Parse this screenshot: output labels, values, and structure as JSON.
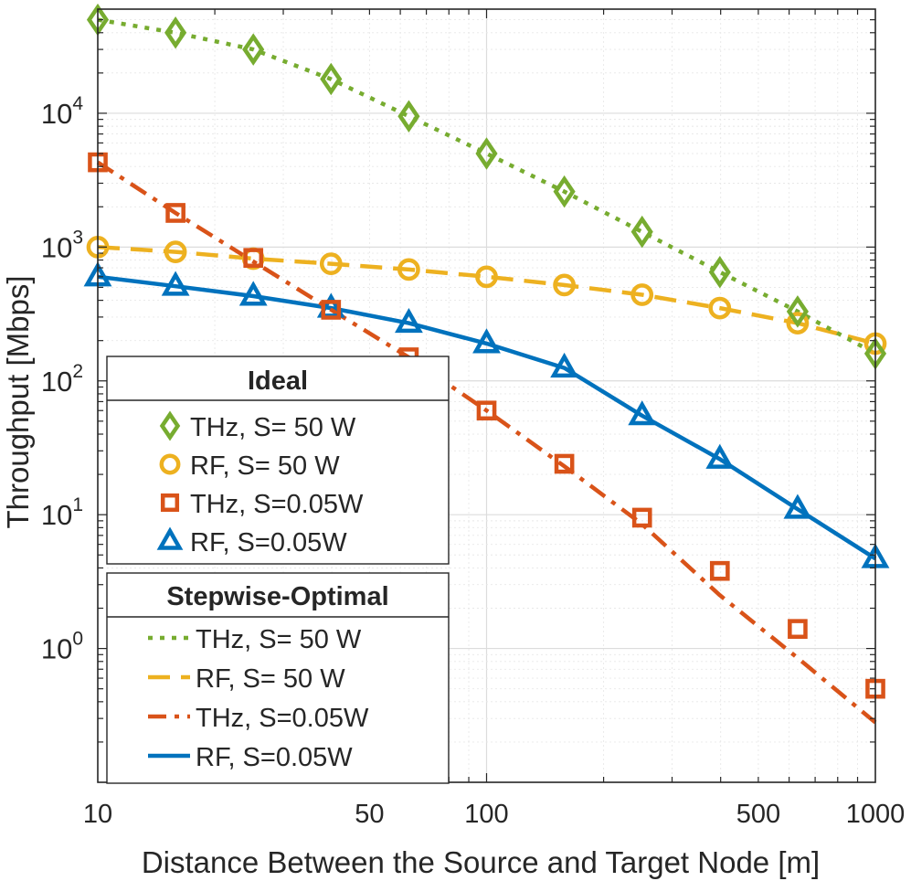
{
  "chart_data": {
    "type": "line",
    "xscale": "log",
    "yscale": "log",
    "xlim": [
      10,
      1000
    ],
    "ylim": [
      0.1,
      60000
    ],
    "xlabel": "Distance Between the Source and Target Node [m]",
    "ylabel": "Throughput  [Mbps]",
    "x_ticks": [
      {
        "value": 10,
        "label": "10"
      },
      {
        "value": 50,
        "label": "50"
      },
      {
        "value": 100,
        "label": "100"
      },
      {
        "value": 500,
        "label": "500"
      },
      {
        "value": 1000,
        "label": "1000"
      }
    ],
    "y_ticks": [
      {
        "value": 1,
        "base": "10",
        "exp": "0"
      },
      {
        "value": 10,
        "base": "10",
        "exp": "1"
      },
      {
        "value": 100,
        "base": "10",
        "exp": "2"
      },
      {
        "value": 1000,
        "base": "10",
        "exp": "3"
      },
      {
        "value": 10000,
        "base": "10",
        "exp": "4"
      }
    ],
    "grid": true,
    "x": [
      10,
      15.85,
      25.12,
      39.81,
      63.1,
      100,
      158.5,
      251.2,
      398.1,
      631,
      1000
    ],
    "legend_ideal": {
      "title": "Ideal",
      "entries": [
        {
          "label": "THz, S=  50 W",
          "series": 0
        },
        {
          "label": "RF,  S=  50 W",
          "series": 1
        },
        {
          "label": "THz, S=0.05W",
          "series": 2
        },
        {
          "label": "RF,  S=0.05W",
          "series": 3
        }
      ]
    },
    "legend_stepwise": {
      "title": "Stepwise-Optimal",
      "entries": [
        {
          "label": "THz, S=  50 W",
          "series": 0
        },
        {
          "label": "RF,  S=  50 W",
          "series": 1
        },
        {
          "label": "THz, S=0.05W",
          "series": 2
        },
        {
          "label": "RF,  S=0.05W",
          "series": 3
        }
      ]
    },
    "series": [
      {
        "name": "THz, S= 50 W",
        "color": "#77AC30",
        "dash": "dotted",
        "marker": "diamond",
        "ideal": [
          50000,
          40000,
          30000,
          18000,
          9500,
          5000,
          2600,
          1300,
          650,
          330,
          160
        ],
        "stepwise": [
          50000,
          40000,
          30000,
          18000,
          9500,
          5000,
          2600,
          1300,
          650,
          330,
          160
        ]
      },
      {
        "name": "RF, S= 50 W",
        "color": "#EDB120",
        "dash": "dashed",
        "marker": "circle",
        "ideal": [
          1000,
          920,
          820,
          750,
          680,
          600,
          520,
          440,
          350,
          270,
          190
        ],
        "stepwise": [
          1000,
          920,
          820,
          750,
          680,
          600,
          520,
          440,
          350,
          270,
          190
        ]
      },
      {
        "name": "THz, S=0.05W",
        "color": "#D95319",
        "dash": "dashdot",
        "marker": "square",
        "ideal": [
          4300,
          1800,
          830,
          340,
          150,
          60,
          24,
          9.5,
          3.8,
          1.4,
          0.5
        ],
        "stepwise": [
          4300,
          1800,
          780,
          340,
          150,
          60,
          23,
          8.5,
          2.5,
          0.85,
          0.28
        ]
      },
      {
        "name": "RF, S=0.05W",
        "color": "#0072BD",
        "dash": "solid",
        "marker": "triangle",
        "ideal": [
          600,
          510,
          430,
          350,
          270,
          190,
          125,
          55,
          26,
          11,
          4.7
        ],
        "stepwise": [
          600,
          510,
          430,
          350,
          270,
          190,
          125,
          55,
          26,
          11,
          4.7
        ]
      }
    ]
  }
}
